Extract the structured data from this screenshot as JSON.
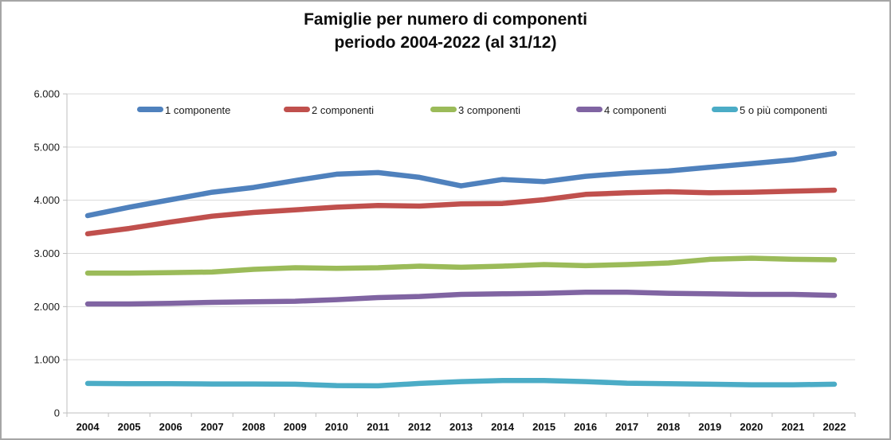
{
  "window": {
    "title_line1": "Famiglie per numero di componenti",
    "title_line2": "periodo 2004-2022 (al 31/12)"
  },
  "colors": {
    "series_blue": "#4F81BD",
    "series_red": "#C0504D",
    "series_green": "#9BBB59",
    "series_purple": "#8064A2",
    "series_teal": "#4BACC6",
    "gridline": "#D9D9D9",
    "axis": "#BFBFBF",
    "chart_border": "#A6A6A6",
    "text": "#1A1A1A"
  },
  "chart_data": {
    "type": "line",
    "title": "Famiglie per numero di componenti",
    "subtitle": "periodo 2004-2022 (al 31/12)",
    "xlabel": "",
    "ylabel": "",
    "ylim": [
      0,
      6000
    ],
    "y_tick_interval": 1000,
    "y_tick_labels": [
      "0",
      "1.000",
      "2.000",
      "3.000",
      "4.000",
      "5.000",
      "6.000"
    ],
    "grid": "horizontal",
    "legend_position": "top-inside",
    "categories": [
      2004,
      2005,
      2006,
      2007,
      2008,
      2009,
      2010,
      2011,
      2012,
      2013,
      2014,
      2015,
      2016,
      2017,
      2018,
      2019,
      2020,
      2021,
      2022
    ],
    "series": [
      {
        "name": "1 componente",
        "color": "#4F81BD",
        "values": [
          3710,
          3870,
          4010,
          4150,
          4240,
          4370,
          4490,
          4520,
          4430,
          4270,
          4390,
          4350,
          4450,
          4510,
          4550,
          4620,
          4690,
          4760,
          4880
        ]
      },
      {
        "name": "2 componenti",
        "color": "#C0504D",
        "values": [
          3370,
          3470,
          3590,
          3700,
          3770,
          3820,
          3870,
          3900,
          3890,
          3930,
          3940,
          4010,
          4110,
          4140,
          4160,
          4140,
          4150,
          4170,
          4190
        ]
      },
      {
        "name": "3 componenti",
        "color": "#9BBB59",
        "values": [
          2630,
          2630,
          2640,
          2650,
          2700,
          2730,
          2720,
          2730,
          2760,
          2740,
          2760,
          2790,
          2770,
          2790,
          2820,
          2890,
          2910,
          2890,
          2880
        ]
      },
      {
        "name": "4 componenti",
        "color": "#8064A2",
        "values": [
          2050,
          2050,
          2060,
          2080,
          2090,
          2100,
          2130,
          2170,
          2190,
          2230,
          2240,
          2250,
          2270,
          2270,
          2250,
          2240,
          2230,
          2230,
          2210
        ]
      },
      {
        "name": "5 o più componenti",
        "color": "#4BACC6",
        "values": [
          555,
          550,
          550,
          545,
          545,
          540,
          515,
          510,
          555,
          590,
          610,
          610,
          590,
          560,
          550,
          540,
          530,
          530,
          540
        ]
      }
    ]
  }
}
